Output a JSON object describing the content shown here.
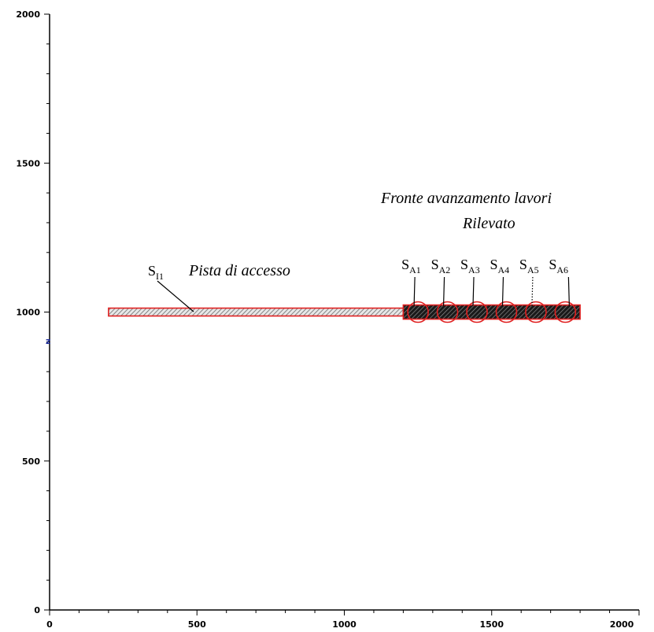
{
  "diagram": {
    "x_axis": {
      "range": [
        0,
        2000
      ],
      "tick_labels": [
        "0",
        "500",
        "1000",
        "1500",
        "2000"
      ]
    },
    "y_axis": {
      "range": [
        0,
        2000
      ],
      "tick_labels": [
        "0",
        "500",
        "1000",
        "1500",
        "2000"
      ]
    },
    "z_marker": "z",
    "access_track": {
      "label": "Pista di accesso",
      "source": {
        "main": "S",
        "sub": "I1"
      },
      "x_range": [
        200,
        1200
      ],
      "y": 1000
    },
    "work_front": {
      "label_line1": "Fronte avanzamento lavori",
      "label_line2": "Rilevato",
      "x_range": [
        1200,
        1800
      ],
      "y": 1000,
      "sources": [
        {
          "main": "S",
          "sub": "A1",
          "x": 1250
        },
        {
          "main": "S",
          "sub": "A2",
          "x": 1350
        },
        {
          "main": "S",
          "sub": "A3",
          "x": 1450
        },
        {
          "main": "S",
          "sub": "A4",
          "x": 1550
        },
        {
          "main": "S",
          "sub": "A5",
          "x": 1650
        },
        {
          "main": "S",
          "sub": "A6",
          "x": 1750
        }
      ]
    },
    "colors": {
      "outline": "#e02020",
      "hatch": "#6a6a6a",
      "z_marker": "#1f2f9a",
      "axes": "#000000"
    }
  }
}
